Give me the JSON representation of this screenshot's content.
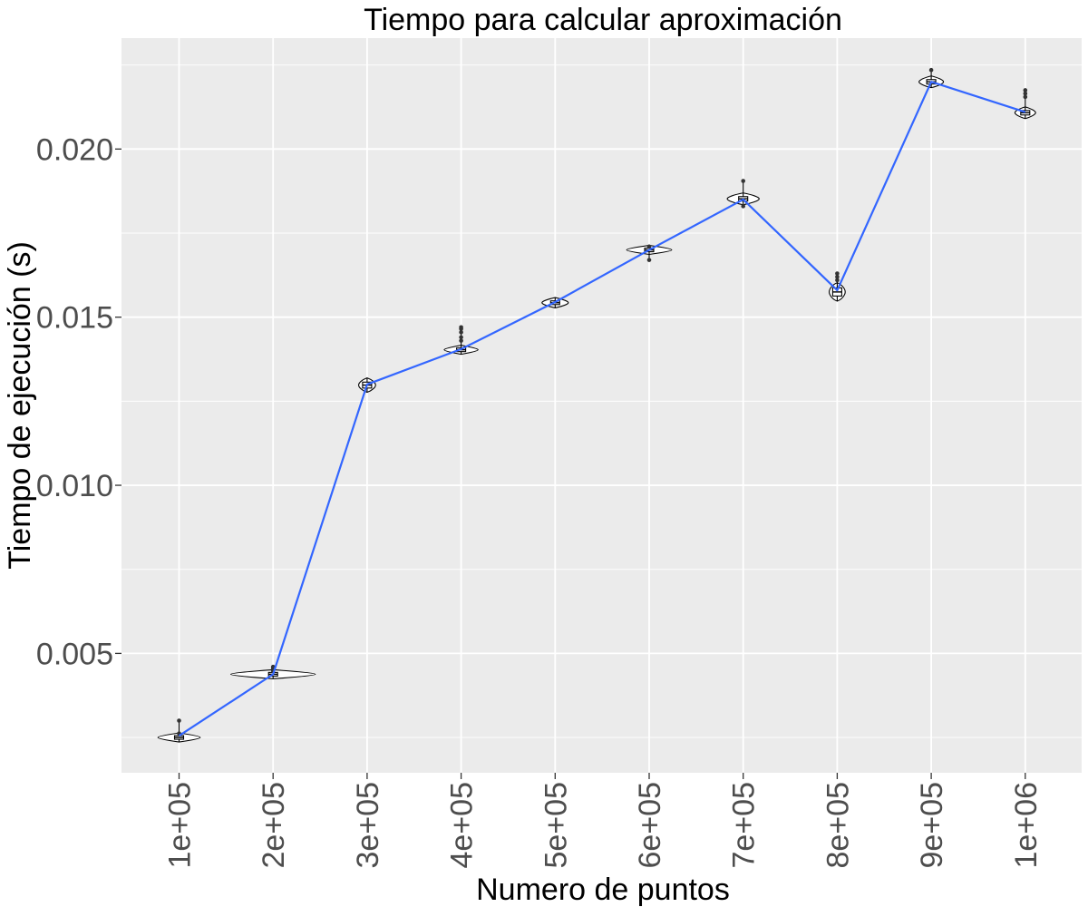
{
  "chart_data": {
    "type": "line",
    "title": "Tiempo para calcular aproximación",
    "xlabel": "Numero de puntos",
    "ylabel": "Tiempo de ejecución (s)",
    "categories": [
      "1e+05",
      "2e+05",
      "3e+05",
      "4e+05",
      "5e+05",
      "6e+05",
      "7e+05",
      "8e+05",
      "9e+05",
      "1e+06"
    ],
    "series": [
      {
        "values": [
          0.00255,
          0.00438,
          0.013,
          0.01405,
          0.01545,
          0.017,
          0.0185,
          0.0158,
          0.022,
          0.0211
        ]
      }
    ],
    "violins": [
      {
        "center": 0.0025,
        "half_width": 0.45,
        "spread": 8e-05,
        "outliers": [
          0.003,
          0.00262
        ]
      },
      {
        "center": 0.00438,
        "half_width": 0.9,
        "spread": 8e-05,
        "outliers": [
          0.0046,
          0.00455,
          0.00448
        ]
      },
      {
        "center": 0.01298,
        "half_width": 0.18,
        "spread": 0.00016,
        "outliers": []
      },
      {
        "center": 0.01403,
        "half_width": 0.36,
        "spread": 8e-05,
        "outliers": [
          0.0147,
          0.01465,
          0.01455,
          0.0144,
          0.0143
        ]
      },
      {
        "center": 0.01543,
        "half_width": 0.28,
        "spread": 0.0001,
        "outliers": []
      },
      {
        "center": 0.017,
        "half_width": 0.48,
        "spread": 8e-05,
        "outliers": [
          0.0171,
          0.0167
        ]
      },
      {
        "center": 0.01852,
        "half_width": 0.34,
        "spread": 0.00012,
        "outliers": [
          0.01905,
          0.0183
        ]
      },
      {
        "center": 0.01575,
        "half_width": 0.17,
        "spread": 0.00022,
        "outliers": [
          0.0163,
          0.0162,
          0.0161
        ]
      },
      {
        "center": 0.022,
        "half_width": 0.26,
        "spread": 0.00012,
        "outliers": [
          0.02235
        ]
      },
      {
        "center": 0.02108,
        "half_width": 0.22,
        "spread": 0.00012,
        "outliers": [
          0.02175,
          0.02165,
          0.02155
        ]
      }
    ],
    "yticks": [
      0.005,
      0.01,
      0.015,
      0.02
    ],
    "ytick_labels": [
      "0.005",
      "0.010",
      "0.015",
      "0.020"
    ],
    "ylim": [
      0.00145,
      0.0233
    ],
    "grid": true,
    "legend": "none",
    "colors": {
      "line": "#3366ff",
      "panel": "#ebebeb",
      "grid": "#ffffff",
      "violin_fill": "#ffffff",
      "violin_stroke": "#000000",
      "tick_text": "#4d4d4d"
    }
  }
}
